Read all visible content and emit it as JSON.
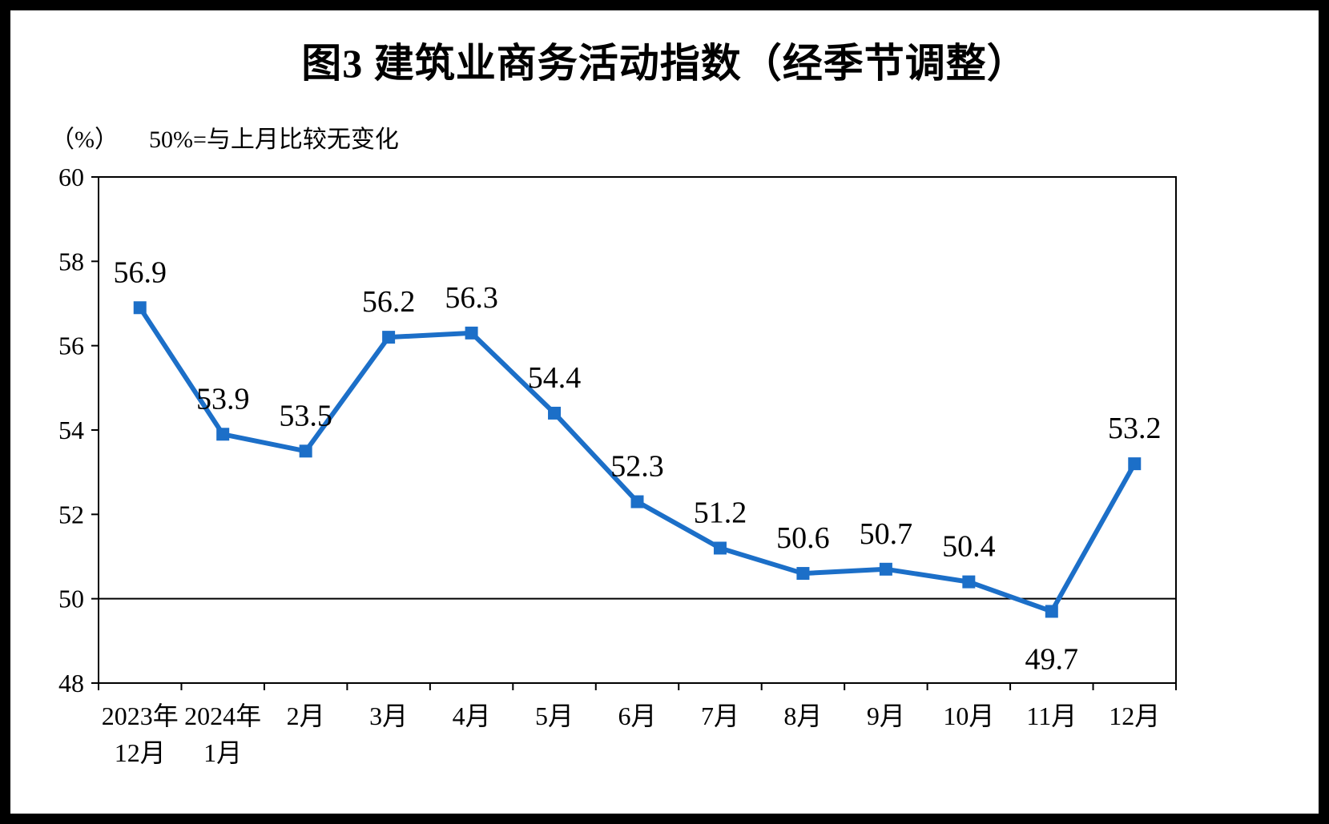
{
  "page": {
    "title": "图3  建筑业商务活动指数（经季节调整）",
    "unit_label": "（%）",
    "subtitle": "50%=与上月比较无变化"
  },
  "chart_data": {
    "type": "line",
    "title": "图3  建筑业商务活动指数（经季节调整）",
    "ylabel": "（%）",
    "annotation": "50%=与上月比较无变化",
    "categories": [
      "2023年\n12月",
      "2024年\n1月",
      "2月",
      "3月",
      "4月",
      "5月",
      "6月",
      "7月",
      "8月",
      "9月",
      "10月",
      "11月",
      "12月"
    ],
    "values": [
      56.9,
      53.9,
      53.5,
      56.2,
      56.3,
      54.4,
      52.3,
      51.2,
      50.6,
      50.7,
      50.4,
      49.7,
      53.2
    ],
    "ylim": [
      48,
      60
    ],
    "ytick_step": 2,
    "reference_line": 50,
    "line_color": "#1c6fc8",
    "marker": "square",
    "marker_color": "#1c6fc8",
    "grid": false,
    "legend": "none",
    "label_color": "#000000",
    "axis_color": "#000000"
  }
}
